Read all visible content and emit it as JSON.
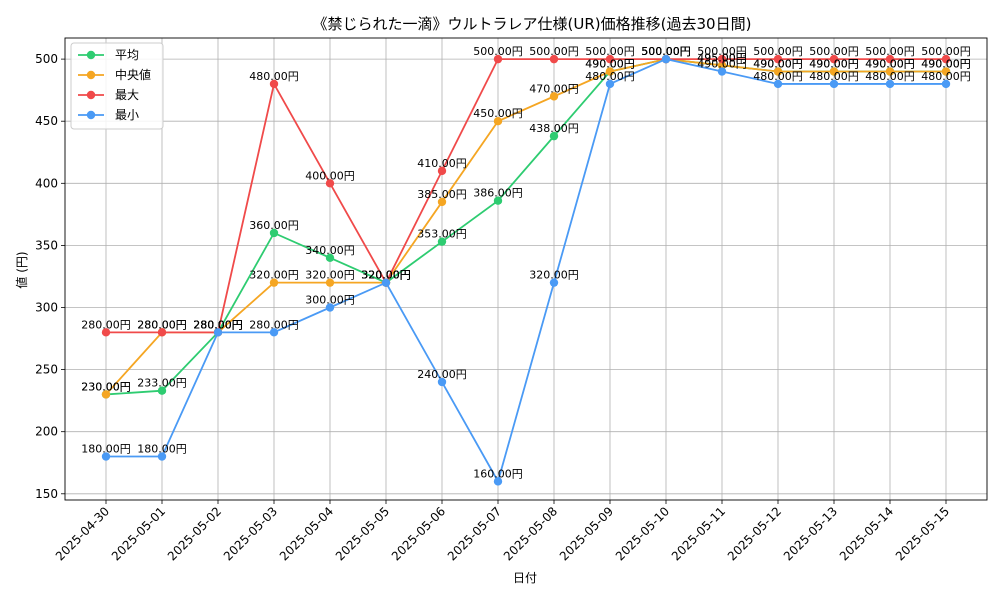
{
  "chart_data": {
    "type": "line",
    "title": "《禁じられた一滴》ウルトラレア仕様(UR)価格推移(過去30日間)",
    "xlabel": "日付",
    "ylabel": "値 (円)",
    "ylim": [
      145,
      517
    ],
    "yticks": [
      150,
      200,
      250,
      300,
      350,
      400,
      450,
      500
    ],
    "grid": true,
    "legend_position": "top-left",
    "label_suffix": "円",
    "categories": [
      "2025-04-30",
      "2025-05-01",
      "2025-05-02",
      "2025-05-03",
      "2025-05-04",
      "2025-05-05",
      "2025-05-06",
      "2025-05-07",
      "2025-05-08",
      "2025-05-09",
      "2025-05-10",
      "2025-05-11",
      "2025-05-12",
      "2025-05-13",
      "2025-05-14",
      "2025-05-15"
    ],
    "series": [
      {
        "name": "平均",
        "color": "#2ecc71",
        "values": [
          230,
          233,
          280,
          360,
          340,
          320,
          353,
          386,
          438,
          490,
          500,
          495,
          490,
          490,
          490,
          490
        ]
      },
      {
        "name": "中央値",
        "color": "#f5a623",
        "values": [
          230,
          280,
          280,
          320,
          320,
          320,
          385,
          450,
          470,
          490,
          500,
          495,
          490,
          490,
          490,
          490
        ]
      },
      {
        "name": "最大",
        "color": "#f04a4a",
        "values": [
          280,
          280,
          280,
          480,
          400,
          320,
          410,
          500,
          500,
          500,
          500,
          500,
          500,
          500,
          500,
          500
        ]
      },
      {
        "name": "最小",
        "color": "#4a9af5",
        "values": [
          180,
          180,
          280,
          280,
          300,
          320,
          240,
          160,
          320,
          480,
          500,
          490,
          480,
          480,
          480,
          480
        ]
      }
    ]
  }
}
